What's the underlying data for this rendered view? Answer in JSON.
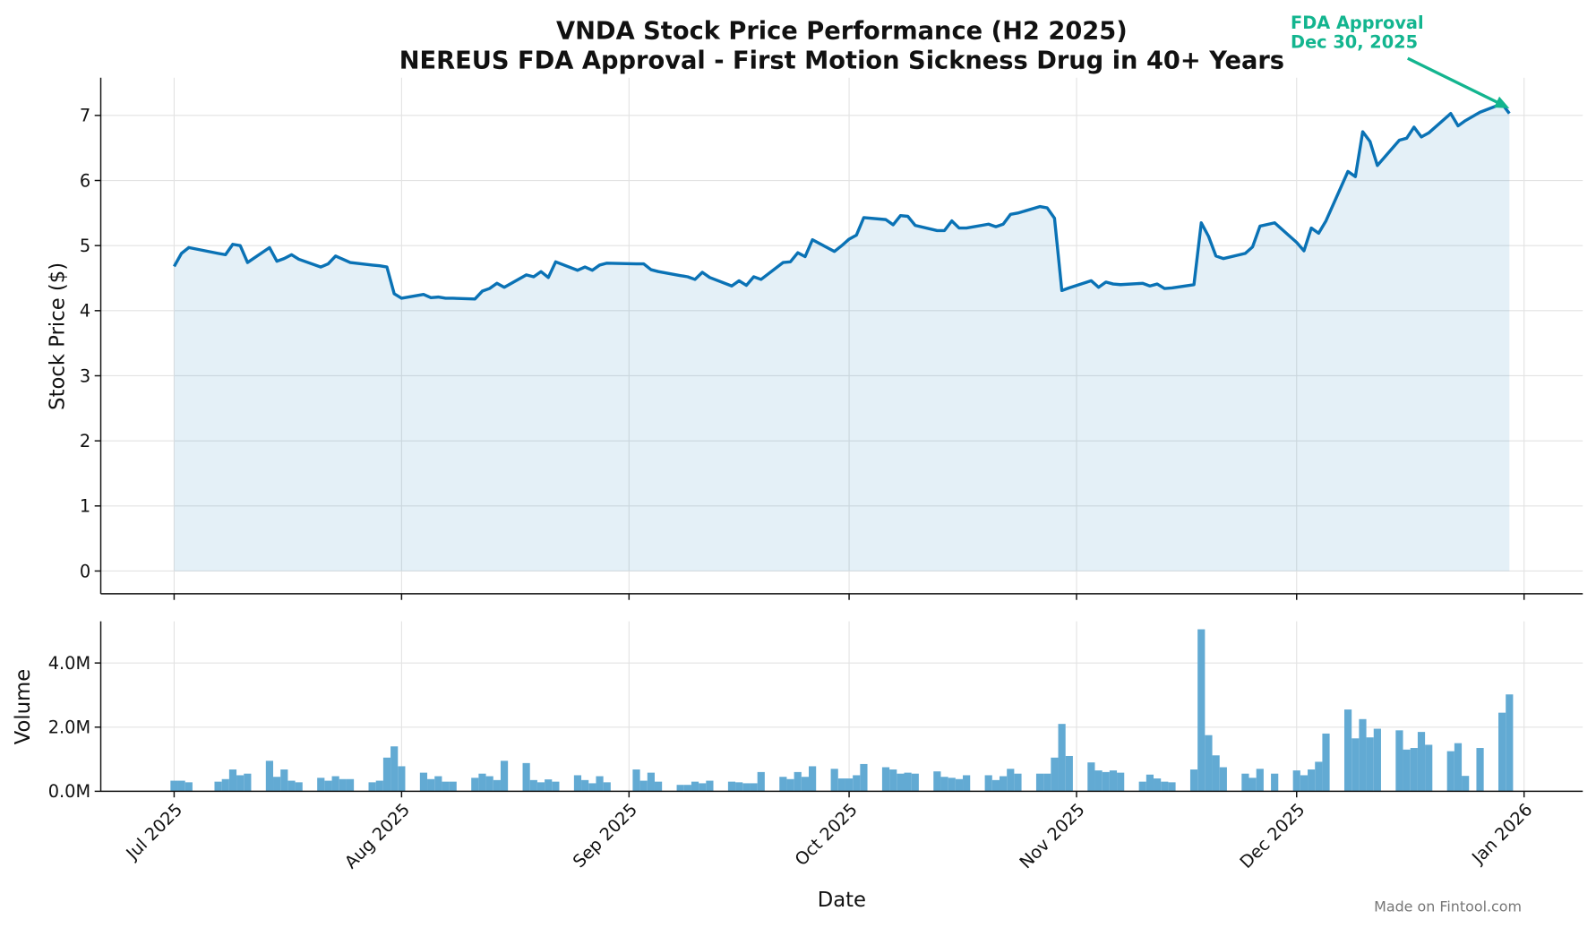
{
  "footer": "Made on Fintool.com",
  "chart_data": [
    {
      "type": "line",
      "title": "VNDA Stock Price Performance (H2 2025)",
      "subtitle": "NEREUS FDA Approval - First Motion Sickness Drug in 40+ Years",
      "ylabel": "Stock Price ($)",
      "color": "#0a72b5",
      "grid": true,
      "xlim": [
        "2025-06-21",
        "2026-01-09"
      ],
      "ylim": [
        -0.35,
        7.58
      ],
      "yticks": [
        0,
        1,
        2,
        3,
        4,
        5,
        6,
        7
      ],
      "annotation": {
        "text": [
          "FDA Approval",
          "Dec 30, 2025"
        ],
        "x": "2025-12-30",
        "y": 7.11,
        "color": "#13b58f"
      },
      "x": [
        "2025-07-01",
        "2025-07-02",
        "2025-07-03",
        "2025-07-07",
        "2025-07-08",
        "2025-07-09",
        "2025-07-10",
        "2025-07-11",
        "2025-07-14",
        "2025-07-15",
        "2025-07-16",
        "2025-07-17",
        "2025-07-18",
        "2025-07-21",
        "2025-07-22",
        "2025-07-23",
        "2025-07-24",
        "2025-07-25",
        "2025-07-28",
        "2025-07-29",
        "2025-07-30",
        "2025-07-31",
        "2025-08-01",
        "2025-08-04",
        "2025-08-05",
        "2025-08-06",
        "2025-08-07",
        "2025-08-08",
        "2025-08-11",
        "2025-08-12",
        "2025-08-13",
        "2025-08-14",
        "2025-08-15",
        "2025-08-18",
        "2025-08-19",
        "2025-08-20",
        "2025-08-21",
        "2025-08-22",
        "2025-08-25",
        "2025-08-26",
        "2025-08-27",
        "2025-08-28",
        "2025-08-29",
        "2025-09-02",
        "2025-09-03",
        "2025-09-04",
        "2025-09-05",
        "2025-09-08",
        "2025-09-09",
        "2025-09-10",
        "2025-09-11",
        "2025-09-12",
        "2025-09-15",
        "2025-09-16",
        "2025-09-17",
        "2025-09-18",
        "2025-09-19",
        "2025-09-22",
        "2025-09-23",
        "2025-09-24",
        "2025-09-25",
        "2025-09-26",
        "2025-09-29",
        "2025-09-30",
        "2025-10-01",
        "2025-10-02",
        "2025-10-03",
        "2025-10-06",
        "2025-10-07",
        "2025-10-08",
        "2025-10-09",
        "2025-10-10",
        "2025-10-13",
        "2025-10-14",
        "2025-10-15",
        "2025-10-16",
        "2025-10-17",
        "2025-10-20",
        "2025-10-21",
        "2025-10-22",
        "2025-10-23",
        "2025-10-24",
        "2025-10-27",
        "2025-10-28",
        "2025-10-29",
        "2025-10-30",
        "2025-10-31",
        "2025-11-03",
        "2025-11-04",
        "2025-11-05",
        "2025-11-06",
        "2025-11-07",
        "2025-11-10",
        "2025-11-11",
        "2025-11-12",
        "2025-11-13",
        "2025-11-14",
        "2025-11-17",
        "2025-11-18",
        "2025-11-19",
        "2025-11-20",
        "2025-11-21",
        "2025-11-24",
        "2025-11-25",
        "2025-11-26",
        "2025-11-28",
        "2025-12-01",
        "2025-12-02",
        "2025-12-03",
        "2025-12-04",
        "2025-12-05",
        "2025-12-08",
        "2025-12-09",
        "2025-12-10",
        "2025-12-11",
        "2025-12-12",
        "2025-12-15",
        "2025-12-16",
        "2025-12-17",
        "2025-12-18",
        "2025-12-19",
        "2025-12-22",
        "2025-12-23",
        "2025-12-24",
        "2025-12-26",
        "2025-12-29",
        "2025-12-30"
      ],
      "values": [
        4.68,
        4.88,
        4.97,
        4.88,
        4.86,
        5.02,
        5.0,
        4.74,
        4.97,
        4.76,
        4.8,
        4.86,
        4.79,
        4.67,
        4.72,
        4.84,
        4.79,
        4.74,
        4.7,
        4.69,
        4.67,
        4.26,
        4.19,
        4.25,
        4.2,
        4.21,
        4.19,
        4.19,
        4.18,
        4.3,
        4.34,
        4.42,
        4.36,
        4.55,
        4.52,
        4.6,
        4.51,
        4.75,
        4.62,
        4.67,
        4.62,
        4.7,
        4.73,
        4.72,
        4.72,
        4.63,
        4.6,
        4.54,
        4.52,
        4.48,
        4.59,
        4.51,
        4.38,
        4.46,
        4.39,
        4.52,
        4.48,
        4.74,
        4.75,
        4.89,
        4.83,
        5.09,
        4.91,
        5.0,
        5.1,
        5.16,
        5.43,
        5.4,
        5.32,
        5.46,
        5.45,
        5.31,
        5.23,
        5.23,
        5.38,
        5.27,
        5.27,
        5.33,
        5.29,
        5.33,
        5.48,
        5.5,
        5.6,
        5.58,
        5.42,
        4.31,
        4.35,
        4.46,
        4.36,
        4.44,
        4.41,
        4.4,
        4.42,
        4.38,
        4.41,
        4.34,
        4.35,
        4.4,
        5.35,
        5.14,
        4.84,
        4.8,
        4.88,
        4.98,
        5.3,
        5.35,
        5.05,
        4.92,
        5.27,
        5.19,
        5.38,
        6.14,
        6.06,
        6.75,
        6.6,
        6.23,
        6.62,
        6.65,
        6.82,
        6.67,
        6.73,
        7.03,
        6.84,
        6.92,
        7.05,
        7.18,
        7.03
      ]
    },
    {
      "type": "bar",
      "xlabel": "Date",
      "ylabel": "Volume",
      "color": "#62aad3",
      "grid": true,
      "xlim": [
        "2025-06-21",
        "2026-01-09"
      ],
      "ylim": [
        0,
        5300000
      ],
      "yticks": [
        {
          "value": 0,
          "label": "0.0M"
        },
        {
          "value": 2000000,
          "label": "2.0M"
        },
        {
          "value": 4000000,
          "label": "4.0M"
        }
      ],
      "xticks": [
        {
          "value": "2025-07-01",
          "label": "Jul 2025"
        },
        {
          "value": "2025-08-01",
          "label": "Aug 2025"
        },
        {
          "value": "2025-09-01",
          "label": "Sep 2025"
        },
        {
          "value": "2025-10-01",
          "label": "Oct 2025"
        },
        {
          "value": "2025-11-01",
          "label": "Nov 2025"
        },
        {
          "value": "2025-12-01",
          "label": "Dec 2025"
        },
        {
          "value": "2026-01-01",
          "label": "Jan 2026"
        }
      ],
      "x": [
        "2025-07-01",
        "2025-07-02",
        "2025-07-03",
        "2025-07-07",
        "2025-07-08",
        "2025-07-09",
        "2025-07-10",
        "2025-07-11",
        "2025-07-14",
        "2025-07-15",
        "2025-07-16",
        "2025-07-17",
        "2025-07-18",
        "2025-07-21",
        "2025-07-22",
        "2025-07-23",
        "2025-07-24",
        "2025-07-25",
        "2025-07-28",
        "2025-07-29",
        "2025-07-30",
        "2025-07-31",
        "2025-08-01",
        "2025-08-04",
        "2025-08-05",
        "2025-08-06",
        "2025-08-07",
        "2025-08-08",
        "2025-08-11",
        "2025-08-12",
        "2025-08-13",
        "2025-08-14",
        "2025-08-15",
        "2025-08-18",
        "2025-08-19",
        "2025-08-20",
        "2025-08-21",
        "2025-08-22",
        "2025-08-25",
        "2025-08-26",
        "2025-08-27",
        "2025-08-28",
        "2025-08-29",
        "2025-09-02",
        "2025-09-03",
        "2025-09-04",
        "2025-09-05",
        "2025-09-08",
        "2025-09-09",
        "2025-09-10",
        "2025-09-11",
        "2025-09-12",
        "2025-09-15",
        "2025-09-16",
        "2025-09-17",
        "2025-09-18",
        "2025-09-19",
        "2025-09-22",
        "2025-09-23",
        "2025-09-24",
        "2025-09-25",
        "2025-09-26",
        "2025-09-29",
        "2025-09-30",
        "2025-10-01",
        "2025-10-02",
        "2025-10-03",
        "2025-10-06",
        "2025-10-07",
        "2025-10-08",
        "2025-10-09",
        "2025-10-10",
        "2025-10-13",
        "2025-10-14",
        "2025-10-15",
        "2025-10-16",
        "2025-10-17",
        "2025-10-20",
        "2025-10-21",
        "2025-10-22",
        "2025-10-23",
        "2025-10-24",
        "2025-10-27",
        "2025-10-28",
        "2025-10-29",
        "2025-10-30",
        "2025-10-31",
        "2025-11-03",
        "2025-11-04",
        "2025-11-05",
        "2025-11-06",
        "2025-11-07",
        "2025-11-10",
        "2025-11-11",
        "2025-11-12",
        "2025-11-13",
        "2025-11-14",
        "2025-11-17",
        "2025-11-18",
        "2025-11-19",
        "2025-11-20",
        "2025-11-21",
        "2025-11-24",
        "2025-11-25",
        "2025-11-26",
        "2025-11-28",
        "2025-12-01",
        "2025-12-02",
        "2025-12-03",
        "2025-12-04",
        "2025-12-05",
        "2025-12-08",
        "2025-12-09",
        "2025-12-10",
        "2025-12-11",
        "2025-12-12",
        "2025-12-15",
        "2025-12-16",
        "2025-12-17",
        "2025-12-18",
        "2025-12-19",
        "2025-12-22",
        "2025-12-23",
        "2025-12-24",
        "2025-12-26",
        "2025-12-29",
        "2025-12-30"
      ],
      "values": [
        330000,
        330000,
        280000,
        300000,
        380000,
        680000,
        500000,
        550000,
        950000,
        450000,
        680000,
        330000,
        280000,
        420000,
        330000,
        470000,
        380000,
        380000,
        280000,
        330000,
        1050000,
        1400000,
        780000,
        580000,
        380000,
        470000,
        300000,
        300000,
        420000,
        550000,
        470000,
        350000,
        950000,
        880000,
        350000,
        280000,
        370000,
        300000,
        500000,
        350000,
        250000,
        470000,
        280000,
        680000,
        330000,
        580000,
        300000,
        200000,
        200000,
        300000,
        250000,
        330000,
        300000,
        280000,
        250000,
        250000,
        600000,
        450000,
        380000,
        600000,
        450000,
        780000,
        700000,
        400000,
        400000,
        500000,
        850000,
        750000,
        680000,
        550000,
        580000,
        550000,
        620000,
        450000,
        420000,
        380000,
        500000,
        500000,
        350000,
        470000,
        700000,
        550000,
        550000,
        550000,
        1050000,
        2100000,
        1100000,
        900000,
        650000,
        600000,
        650000,
        580000,
        300000,
        520000,
        400000,
        300000,
        280000,
        680000,
        5050000,
        1750000,
        1120000,
        750000,
        550000,
        420000,
        700000,
        550000,
        650000,
        500000,
        680000,
        920000,
        1800000,
        2550000,
        1650000,
        2250000,
        1680000,
        1950000,
        1900000,
        1300000,
        1350000,
        1850000,
        1450000,
        1250000,
        1500000,
        480000,
        1350000,
        2450000,
        3020000
      ]
    }
  ]
}
